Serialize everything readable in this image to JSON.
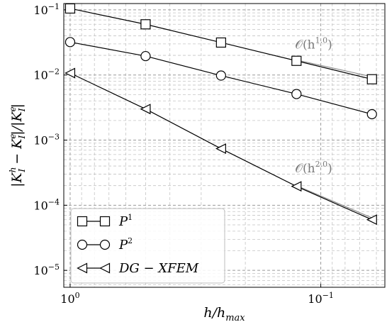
{
  "chart_data": {
    "type": "line",
    "xscale": "log",
    "yscale": "log",
    "x_reversed": true,
    "grid": "on (major and minor, dashed)",
    "legend_position": "lower-left",
    "xlabel_parts": [
      "h/h",
      "max"
    ],
    "ylabel_parts": [
      "|K",
      "h",
      "I",
      " − K",
      "e",
      "I",
      "|/|K",
      "e",
      "I",
      "|"
    ],
    "xlim": [
      1.06,
      0.0555
    ],
    "ylim": [
      5.5e-06,
      0.125
    ],
    "x": [
      1.0,
      0.5,
      0.25,
      0.125,
      0.0625
    ],
    "x_ticks": [
      {
        "value": 1.0,
        "base": "10",
        "exp": "0"
      },
      {
        "value": 0.1,
        "base": "10",
        "exp": "−1"
      }
    ],
    "y_ticks": [
      {
        "value": 0.1,
        "base": "10",
        "exp": "−1"
      },
      {
        "value": 0.01,
        "base": "10",
        "exp": "−2"
      },
      {
        "value": 0.001,
        "base": "10",
        "exp": "−3"
      },
      {
        "value": 0.0001,
        "base": "10",
        "exp": "−4"
      },
      {
        "value": 1e-05,
        "base": "10",
        "exp": "−5"
      }
    ],
    "series": [
      {
        "name_base": "P",
        "name_sup": "1",
        "marker": "square",
        "values": [
          0.105,
          0.06,
          0.0315,
          0.0165,
          0.0086
        ]
      },
      {
        "name_base": "P",
        "name_sup": "2",
        "marker": "circle",
        "values": [
          0.032,
          0.0195,
          0.0098,
          0.0051,
          0.0025
        ]
      },
      {
        "name_base": "DG − XFEM",
        "name_sup": "",
        "marker": "triangle-left",
        "values": [
          0.0107,
          0.003,
          0.00074,
          0.000195,
          6e-05
        ]
      }
    ],
    "annotations": [
      {
        "prefix": "𝒪(h",
        "sup": "1.0",
        "suffix": ")",
        "at_x": 0.125,
        "at_y": 0.0165,
        "ref_x": [
          0.125,
          0.0625
        ],
        "ref_y": [
          0.017,
          0.0094
        ]
      },
      {
        "prefix": "𝒪(h",
        "sup": "2.0",
        "suffix": ")",
        "at_x": 0.125,
        "at_y": 0.00021,
        "ref_x": [
          0.125,
          0.0625
        ],
        "ref_y": [
          0.0002,
          6.4e-05
        ]
      }
    ]
  }
}
